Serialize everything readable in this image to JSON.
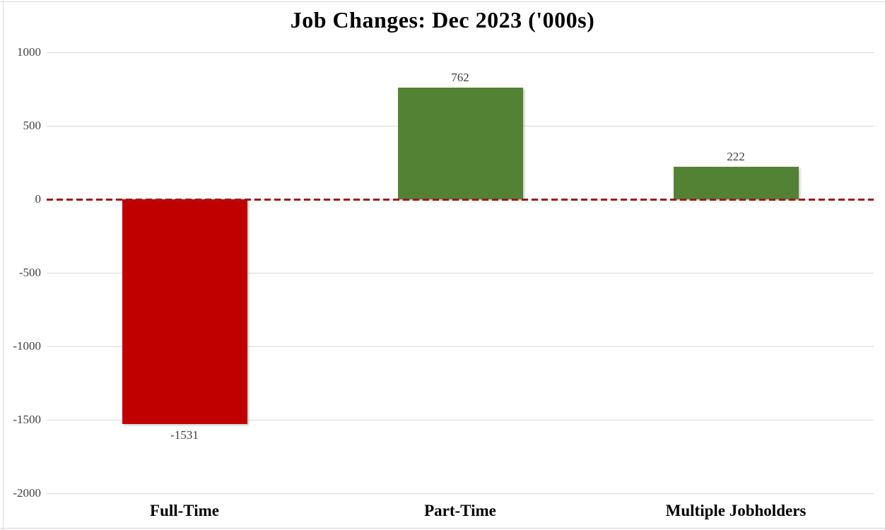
{
  "chart_data": {
    "type": "bar",
    "title": "Job Changes: Dec 2023 ('000s)",
    "categories": [
      "Full-Time",
      "Part-Time",
      "Multiple Jobholders"
    ],
    "values": [
      -1531,
      762,
      222
    ],
    "value_labels": [
      "-1531",
      "762",
      "222"
    ],
    "xlabel": "",
    "ylabel": "",
    "ylim": [
      -2000,
      1000
    ],
    "yticks": [
      1000,
      500,
      0,
      -500,
      -1000,
      -1500,
      -2000
    ],
    "grid": true,
    "legend": false,
    "zero_line_style": "dashed",
    "colors": {
      "positive_bar": "#548235",
      "negative_bar": "#c00000",
      "zero_line": "#9e1a1a",
      "gridline": "#d9d9d9",
      "tick_text": "#404040",
      "title_text": "#000000"
    }
  }
}
